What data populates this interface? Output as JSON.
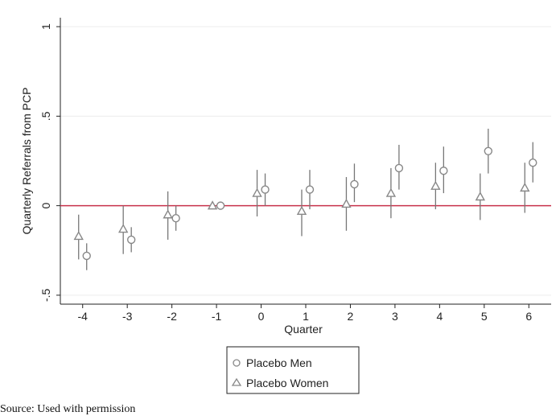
{
  "chart_data": {
    "type": "scatter",
    "title": "",
    "xlabel": "Quarter",
    "ylabel": "Quarterly Referrals from PCP",
    "xlim": [
      -4.5,
      6.5
    ],
    "ylim": [
      -0.55,
      1.05
    ],
    "x_ticks": [
      -4,
      -3,
      -2,
      -1,
      0,
      1,
      2,
      3,
      4,
      5,
      6
    ],
    "x_tick_labels": [
      "-4",
      "-3",
      "-2",
      "-1",
      "0",
      "1",
      "2",
      "3",
      "4",
      "5",
      "6"
    ],
    "y_ticks": [
      1,
      0.5,
      0,
      -0.5
    ],
    "y_tick_labels": [
      "1",
      ".5",
      "0",
      "-.5"
    ],
    "grid": true,
    "reference_line": {
      "y": 0,
      "color": "#c8324b"
    },
    "legend": {
      "placement": "bottom-center"
    },
    "colors": {
      "markers": "#888888",
      "error_bars": "#777777",
      "gridlines": "#ececec"
    },
    "series": [
      {
        "name": "Placebo Men",
        "marker": "circle",
        "x": [
          -4,
          -3,
          -2,
          -1,
          0,
          1,
          2,
          3,
          4,
          5,
          6
        ],
        "values": [
          -0.28,
          -0.19,
          -0.07,
          0.0,
          0.09,
          0.09,
          0.12,
          0.21,
          0.195,
          0.305,
          0.24
        ],
        "ci_low": [
          -0.36,
          -0.26,
          -0.14,
          0.0,
          0.0,
          -0.02,
          0.02,
          0.09,
          0.07,
          0.18,
          0.13
        ],
        "ci_high": [
          -0.21,
          -0.12,
          0.0,
          0.0,
          0.18,
          0.2,
          0.235,
          0.34,
          0.33,
          0.43,
          0.355
        ]
      },
      {
        "name": "Placebo Women",
        "marker": "triangle",
        "x": [
          -4,
          -3,
          -2,
          -1,
          0,
          1,
          2,
          3,
          4,
          5,
          6
        ],
        "values": [
          -0.17,
          -0.13,
          -0.05,
          0.0,
          0.07,
          -0.03,
          0.01,
          0.07,
          0.11,
          0.05,
          0.1
        ],
        "ci_low": [
          -0.3,
          -0.27,
          -0.19,
          0.0,
          -0.06,
          -0.17,
          -0.14,
          -0.07,
          -0.02,
          -0.08,
          -0.04
        ],
        "ci_high": [
          -0.05,
          0.0,
          0.08,
          0.0,
          0.2,
          0.09,
          0.16,
          0.21,
          0.24,
          0.18,
          0.24
        ]
      }
    ]
  },
  "legend_labels": [
    "Placebo Men",
    "Placebo Women"
  ],
  "caption": "Source: Used with permission"
}
